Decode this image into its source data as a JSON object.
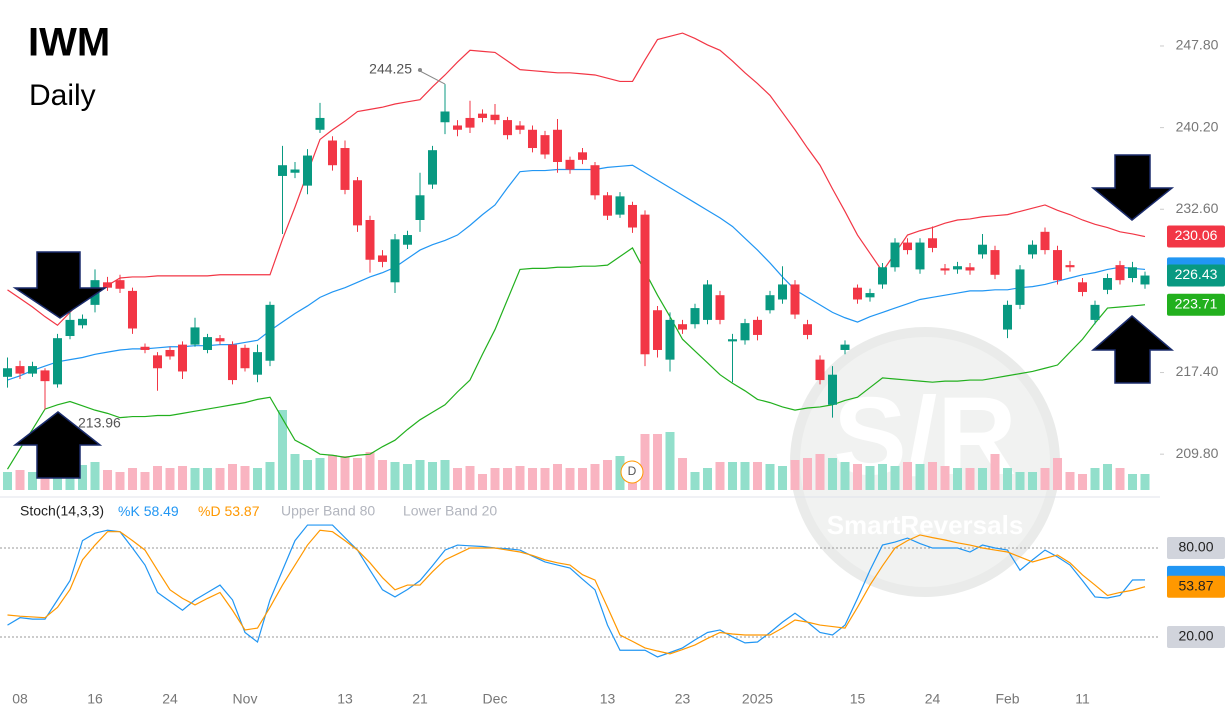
{
  "chart_data": [
    {
      "type": "candlestick",
      "title": "IWM",
      "subtitle": "Daily",
      "event_marker": "D",
      "watermark": {
        "logo": "S/R",
        "text": "SmartReversals"
      },
      "categories": [
        null,
        "08",
        null,
        null,
        null,
        null,
        null,
        "16",
        null,
        null,
        null,
        null,
        null,
        "24",
        null,
        null,
        null,
        null,
        null,
        "Nov",
        null,
        null,
        null,
        null,
        null,
        null,
        null,
        "13",
        null,
        null,
        null,
        null,
        null,
        "21",
        null,
        null,
        null,
        null,
        null,
        "Dec",
        null,
        null,
        null,
        null,
        null,
        null,
        null,
        null,
        "13",
        null,
        null,
        null,
        null,
        null,
        "23",
        null,
        null,
        null,
        null,
        null,
        "2025",
        null,
        null,
        null,
        null,
        null,
        null,
        null,
        "15",
        null,
        null,
        null,
        null,
        null,
        "24",
        null,
        null,
        null,
        null,
        null,
        "Feb",
        null,
        null,
        null,
        null,
        null,
        "11",
        null,
        null,
        null,
        null,
        null
      ],
      "open": [
        217.0,
        218.0,
        217.3,
        217.6,
        216.3,
        220.8,
        221.8,
        223.7,
        225.8,
        226.0,
        225.0,
        219.8,
        219.0,
        219.5,
        220.0,
        220.0,
        219.5,
        220.6,
        220.0,
        219.7,
        217.2,
        218.5,
        235.7,
        236.0,
        234.8,
        240.0,
        239.0,
        238.3,
        235.3,
        231.6,
        228.3,
        225.8,
        229.3,
        231.6,
        234.9,
        240.7,
        240.4,
        241.1,
        241.5,
        241.4,
        240.9,
        240.4,
        240.0,
        239.5,
        240.0,
        237.2,
        237.9,
        236.7,
        233.9,
        232.1,
        233.0,
        232.1,
        223.2,
        218.6,
        221.9,
        221.9,
        222.3,
        224.6,
        220.3,
        220.4,
        222.3,
        223.2,
        224.2,
        225.6,
        221.9,
        218.6,
        214.4,
        219.5,
        225.3,
        224.4,
        225.6,
        227.2,
        229.5,
        227.0,
        229.9,
        227.1,
        227.0,
        227.2,
        228.4,
        228.8,
        221.4,
        223.7,
        228.4,
        230.5,
        228.8,
        227.4,
        225.8,
        222.3,
        225.1,
        227.4,
        226.2,
        225.6
      ],
      "high": [
        218.8,
        218.5,
        218.4,
        217.8,
        221.0,
        223.0,
        222.8,
        227.0,
        226.3,
        226.5,
        225.3,
        220.1,
        219.3,
        219.8,
        220.3,
        222.5,
        221.0,
        220.9,
        220.3,
        220.0,
        220.0,
        224.0,
        238.5,
        237.0,
        238.2,
        242.5,
        239.4,
        239.0,
        235.6,
        232.0,
        228.8,
        230.3,
        230.6,
        236.0,
        238.5,
        244.25,
        240.9,
        242.7,
        241.9,
        242.4,
        241.2,
        240.8,
        240.4,
        239.9,
        241.0,
        237.5,
        238.3,
        237.0,
        234.2,
        234.2,
        233.3,
        232.5,
        223.6,
        223.0,
        222.3,
        223.8,
        226.0,
        225.0,
        221.0,
        222.4,
        222.6,
        225.0,
        227.3,
        226.0,
        222.3,
        219.0,
        218.0,
        220.4,
        225.6,
        225.2,
        227.6,
        229.9,
        229.9,
        229.9,
        231.0,
        227.5,
        227.7,
        227.6,
        230.3,
        229.2,
        224.1,
        227.4,
        229.7,
        230.9,
        229.2,
        227.8,
        226.2,
        224.1,
        226.6,
        227.8,
        227.7,
        226.8
      ],
      "low": [
        216.0,
        216.8,
        217.0,
        213.96,
        216.0,
        220.5,
        221.5,
        223.0,
        225.0,
        224.8,
        221.0,
        219.2,
        215.7,
        218.6,
        216.8,
        219.8,
        219.2,
        220.0,
        216.3,
        217.5,
        216.5,
        218.0,
        230.3,
        235.5,
        234.0,
        239.7,
        236.2,
        234.0,
        230.5,
        226.7,
        227.2,
        224.8,
        228.9,
        230.5,
        234.5,
        239.6,
        239.4,
        239.7,
        240.7,
        240.5,
        239.1,
        239.6,
        237.9,
        237.3,
        236.0,
        235.9,
        236.8,
        233.5,
        231.6,
        231.8,
        230.4,
        218.0,
        218.8,
        217.5,
        221.0,
        221.5,
        221.9,
        221.9,
        216.5,
        220.0,
        220.4,
        222.9,
        223.8,
        222.4,
        220.5,
        216.3,
        213.2,
        219.1,
        223.8,
        224.0,
        225.2,
        226.8,
        228.4,
        226.6,
        228.6,
        226.5,
        226.6,
        226.5,
        228.0,
        226.1,
        220.6,
        223.3,
        228.0,
        228.4,
        225.6,
        226.8,
        224.5,
        221.9,
        224.7,
        225.6,
        225.8,
        225.2
      ],
      "close": [
        217.8,
        217.3,
        218.0,
        216.6,
        220.6,
        222.3,
        222.4,
        226.0,
        225.3,
        225.2,
        221.5,
        219.5,
        217.8,
        218.9,
        217.5,
        221.6,
        220.7,
        220.3,
        216.7,
        217.8,
        219.3,
        223.7,
        236.7,
        236.3,
        237.6,
        241.1,
        236.7,
        234.4,
        231.1,
        227.9,
        227.7,
        229.8,
        230.2,
        233.9,
        238.1,
        241.7,
        240.0,
        240.2,
        241.1,
        240.9,
        239.5,
        240.0,
        238.3,
        237.7,
        237.0,
        236.3,
        237.2,
        233.9,
        232.0,
        233.8,
        230.9,
        219.1,
        219.5,
        222.3,
        221.4,
        223.4,
        225.6,
        222.3,
        220.5,
        222.0,
        220.9,
        224.6,
        225.6,
        222.8,
        220.9,
        216.7,
        217.2,
        220.0,
        224.2,
        224.8,
        227.2,
        229.5,
        228.8,
        229.5,
        229.0,
        226.9,
        227.3,
        226.9,
        229.3,
        226.5,
        223.7,
        227.0,
        229.3,
        228.8,
        226.0,
        227.2,
        224.9,
        223.7,
        226.2,
        226.0,
        227.2,
        226.43
      ],
      "up_color": "#089981",
      "down_color": "#f23645",
      "volume": {
        "up_color": "#92dfcb",
        "down_color": "#f9b4c1",
        "values": [
          18,
          20,
          18,
          22,
          28,
          26,
          25,
          28,
          20,
          18,
          22,
          18,
          24,
          22,
          24,
          22,
          22,
          22,
          26,
          24,
          22,
          28,
          80,
          36,
          30,
          32,
          35,
          34,
          32,
          38,
          30,
          28,
          26,
          30,
          28,
          30,
          22,
          24,
          16,
          22,
          22,
          24,
          22,
          22,
          26,
          22,
          22,
          26,
          30,
          34,
          26,
          56,
          56,
          58,
          32,
          18,
          22,
          28,
          28,
          28,
          28,
          26,
          24,
          30,
          32,
          36,
          32,
          28,
          26,
          24,
          26,
          24,
          28,
          26,
          28,
          24,
          22,
          22,
          22,
          36,
          22,
          18,
          18,
          22,
          32,
          18,
          16,
          22,
          26,
          22,
          16,
          16
        ]
      },
      "bands": [
        {
          "color": "#f23645",
          "values": [
            225.1,
            224.3,
            223.5,
            222.6,
            221.8,
            223.0,
            224.2,
            224.9,
            225.5,
            226.2,
            226.3,
            226.3,
            226.4,
            226.4,
            226.4,
            226.4,
            226.4,
            226.5,
            226.5,
            226.5,
            226.5,
            226.5,
            229.8,
            232.8,
            236.0,
            239.1,
            240.0,
            240.8,
            241.7,
            241.9,
            242.1,
            242.4,
            242.6,
            242.8,
            244.0,
            245.1,
            246.3,
            247.4,
            247.3,
            247.2,
            246.4,
            245.6,
            245.5,
            245.4,
            245.3,
            245.3,
            245.2,
            245.1,
            244.8,
            244.5,
            244.5,
            246.5,
            248.4,
            248.7,
            249.0,
            248.5,
            247.9,
            247.4,
            246.4,
            245.3,
            244.3,
            243.2,
            241.6,
            240.0,
            238.3,
            236.7,
            234.5,
            232.4,
            230.2,
            228.5,
            226.8,
            228.5,
            230.2,
            230.6,
            230.9,
            231.3,
            231.6,
            231.7,
            231.9,
            232.0,
            232.1,
            232.4,
            232.7,
            233.0,
            232.5,
            232.1,
            231.6,
            231.2,
            230.9,
            230.5,
            230.3,
            230.06
          ]
        },
        {
          "color": "#2196f3",
          "values": [
            216.7,
            217.1,
            217.6,
            218.0,
            218.4,
            218.6,
            218.8,
            219.1,
            219.3,
            219.5,
            219.6,
            219.6,
            219.7,
            219.8,
            219.8,
            219.9,
            219.9,
            220.0,
            220.0,
            220.2,
            220.4,
            221.3,
            222.1,
            222.9,
            223.6,
            224.4,
            224.9,
            225.3,
            225.8,
            226.3,
            226.7,
            227.2,
            228.0,
            228.8,
            229.3,
            229.7,
            230.2,
            231.1,
            232.1,
            233.0,
            234.6,
            236.1,
            236.2,
            236.2,
            236.3,
            236.3,
            236.3,
            236.3,
            236.5,
            236.6,
            236.7,
            236.0,
            235.3,
            234.6,
            233.9,
            233.2,
            232.5,
            231.8,
            231.0,
            229.9,
            228.8,
            227.6,
            226.3,
            225.1,
            224.4,
            223.7,
            223.0,
            222.5,
            222.1,
            222.6,
            223.0,
            223.4,
            223.8,
            224.2,
            224.4,
            224.6,
            224.8,
            225.0,
            225.0,
            225.1,
            225.1,
            225.3,
            225.4,
            225.6,
            225.9,
            226.2,
            226.5,
            226.7,
            227.0,
            227.2,
            227.1,
            227.0
          ]
        },
        {
          "color": "#22b01e",
          "values": [
            208.4,
            210.3,
            212.1,
            214.0,
            214.4,
            214.7,
            214.3,
            213.9,
            213.6,
            213.2,
            213.3,
            213.3,
            213.4,
            213.4,
            213.6,
            213.8,
            214.0,
            214.2,
            214.4,
            214.6,
            214.9,
            215.1,
            213.1,
            211.1,
            210.5,
            209.8,
            209.7,
            209.5,
            209.7,
            209.8,
            210.5,
            211.1,
            212.1,
            213.0,
            213.7,
            214.4,
            215.6,
            216.7,
            219.1,
            221.4,
            224.2,
            227.0,
            227.1,
            227.1,
            227.2,
            227.2,
            227.3,
            227.3,
            227.4,
            228.2,
            229.0,
            226.8,
            224.6,
            222.6,
            220.5,
            219.4,
            218.3,
            217.2,
            216.4,
            215.7,
            214.9,
            214.6,
            214.2,
            213.9,
            214.1,
            214.2,
            214.4,
            214.8,
            215.1,
            216.0,
            216.9,
            216.8,
            216.7,
            216.6,
            216.5,
            216.6,
            216.6,
            216.7,
            216.7,
            216.9,
            217.1,
            217.3,
            217.5,
            217.8,
            218.1,
            219.3,
            220.5,
            222.0,
            223.4,
            223.5,
            223.6,
            223.71
          ]
        }
      ],
      "ylim": [
        206.0,
        252.08
      ],
      "yticks": [
        {
          "value": 209.8,
          "label": "209.80"
        },
        {
          "value": 217.4,
          "label": "217.40"
        },
        {
          "value": 232.6,
          "label": "232.60"
        },
        {
          "value": 240.2,
          "label": "240.20"
        },
        {
          "value": 247.8,
          "label": "247.80"
        }
      ]
    },
    {
      "type": "line",
      "title": "Stoch(14,3,3)",
      "band_labels": [
        "Upper Band 80",
        "Lower Band 20"
      ],
      "series": [
        {
          "name": "%K",
          "color": "#2196f3",
          "values": [
            28,
            33,
            32,
            32,
            45,
            58,
            85,
            90,
            92,
            91,
            80,
            68.5,
            50,
            44,
            38,
            45,
            50,
            55,
            45,
            23,
            16.6,
            45,
            65,
            85,
            95.5,
            95.5,
            95.5,
            87,
            78.6,
            65,
            51.8,
            47,
            52,
            58,
            68,
            78.6,
            82,
            81.5,
            81,
            80,
            79.5,
            78.6,
            74.5,
            70.6,
            68.5,
            66.5,
            59,
            51.8,
            28,
            11,
            11,
            11,
            6.5,
            9.5,
            12.6,
            18,
            23,
            24.7,
            20,
            16,
            16.6,
            23,
            30,
            36,
            30,
            23,
            21.3,
            28,
            46,
            65,
            82,
            84,
            86.7,
            83,
            80,
            80,
            80,
            77.3,
            82,
            80,
            78.6,
            65,
            72,
            78.6,
            74,
            68.5,
            58,
            47,
            46.3,
            48,
            58.4,
            58.49
          ]
        },
        {
          "name": "%D",
          "color": "#ff9800",
          "values": [
            34.8,
            34,
            33.5,
            33,
            40,
            52,
            72,
            82,
            91,
            91,
            85,
            78.6,
            65,
            51.8,
            46,
            41.6,
            46,
            50,
            38,
            24.7,
            26,
            40,
            55,
            68.5,
            82,
            92,
            91,
            85,
            78.6,
            70,
            60,
            51.8,
            55,
            55,
            64,
            72,
            76,
            80,
            80,
            80,
            78.6,
            77.3,
            75,
            72,
            70,
            68.5,
            62,
            58.4,
            40,
            21.3,
            17,
            12.6,
            10.5,
            8.6,
            11.5,
            14.6,
            19,
            23,
            22,
            21.3,
            21.3,
            21.3,
            26,
            31.4,
            30,
            28,
            27,
            26,
            40,
            55,
            68,
            80,
            85,
            88.8,
            87,
            85.4,
            83.5,
            82,
            80,
            78.6,
            77.3,
            74,
            70.6,
            73,
            75.3,
            70,
            61.8,
            55,
            48,
            50,
            51.5,
            53.87
          ]
        }
      ],
      "ylim": [
        -15.8,
        98.9
      ],
      "yticks": [
        {
          "value": 20,
          "label": "20.00"
        },
        {
          "value": 80,
          "label": "80.00"
        }
      ]
    }
  ]
}
